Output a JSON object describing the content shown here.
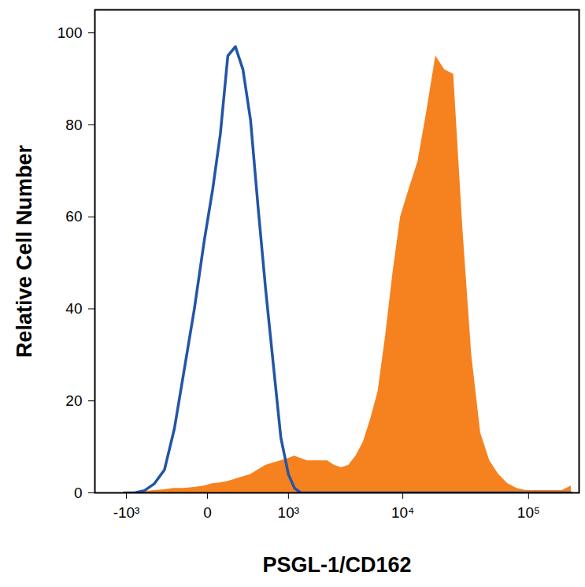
{
  "chart_data": {
    "type": "histogram",
    "xlabel": "PSGL-1/CD162",
    "ylabel": "Relative Cell Number",
    "log": "x",
    "grid": false,
    "xlim": [
      -2000,
      250000
    ],
    "ylim": [
      0,
      105
    ],
    "xticks": [
      {
        "value": -1000,
        "label": "-10³"
      },
      0,
      {
        "value": 1000,
        "label": "10³"
      },
      {
        "value": 10000,
        "label": "10⁴"
      },
      {
        "value": 100000,
        "label": "10⁵"
      }
    ],
    "yticks": [
      0,
      20,
      40,
      60,
      80,
      100
    ],
    "x": [
      -1047,
      -824,
      -638,
      -483,
      -353,
      -245,
      -155,
      -80,
      -17,
      30,
      79,
      134,
      198,
      271,
      355,
      451,
      562,
      688,
      833,
      1000,
      1152,
      1327,
      1528,
      1760,
      2027,
      2334,
      2689,
      3097,
      3566,
      4107,
      4730,
      5448,
      6274,
      7226,
      8322,
      9585,
      11220,
      13227,
      15590,
      18377,
      21663,
      25535,
      30096,
      35481,
      41820,
      49306,
      58117,
      68503,
      80743,
      95192,
      112202,
      132252,
      155900,
      183764,
      216620
    ],
    "series": [
      {
        "type": "area",
        "color": "#f5821f",
        "values": [
          0,
          0,
          0.3,
          0.5,
          0.7,
          1,
          1,
          1.2,
          1.5,
          2,
          2.2,
          2.5,
          3,
          3.5,
          4,
          5,
          6,
          6.5,
          7,
          7.5,
          8,
          7.5,
          7,
          7,
          7,
          7,
          6,
          5.5,
          6,
          8,
          11,
          16,
          22,
          34,
          48,
          60,
          66,
          72,
          83,
          95,
          92,
          91,
          58,
          30,
          13,
          7,
          4,
          2,
          1,
          0.5,
          0.5,
          0.5,
          0.5,
          0.5,
          1.5
        ]
      },
      {
        "type": "line",
        "color": "#2355a6",
        "values": [
          0,
          0,
          0.5,
          2,
          5,
          14,
          27,
          40,
          55,
          66,
          78,
          95,
          97,
          92,
          81,
          62,
          44,
          28,
          12,
          4,
          1,
          0,
          0,
          0,
          0,
          0,
          0,
          0,
          0,
          0,
          0,
          0,
          0,
          0,
          0,
          0,
          0,
          0,
          0,
          0,
          0,
          0,
          0,
          0,
          0,
          0,
          0,
          0,
          0,
          0,
          0,
          0,
          0,
          0,
          0
        ]
      }
    ]
  }
}
